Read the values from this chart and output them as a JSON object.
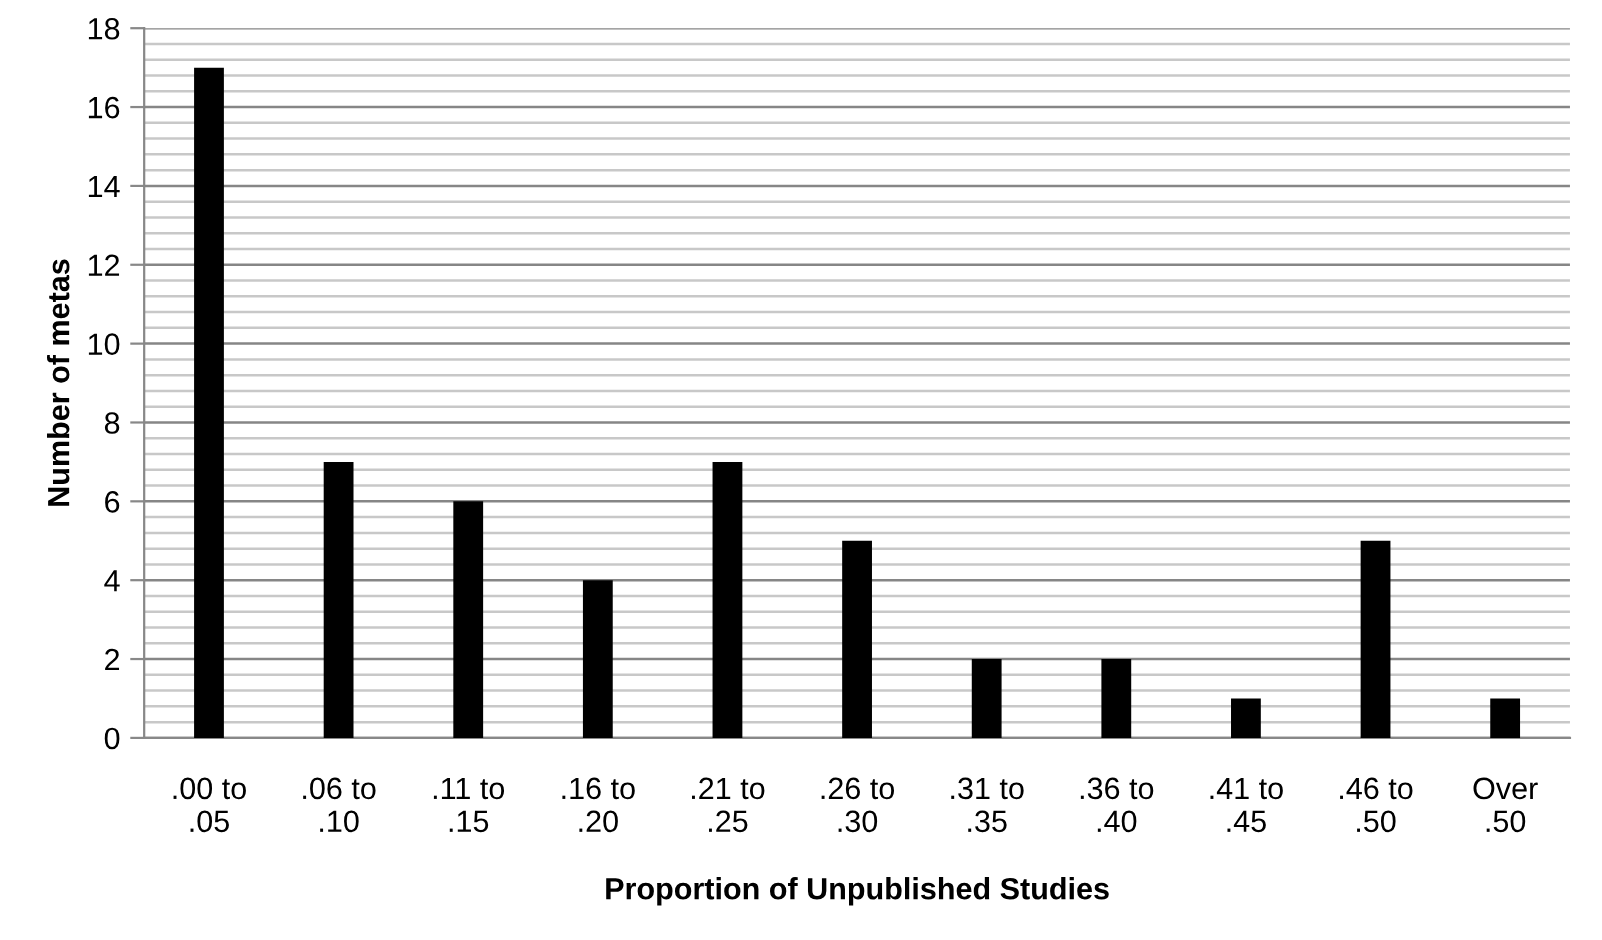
{
  "chart_data": {
    "type": "bar",
    "xlabel": "Proportion of Unpublished Studies",
    "ylabel": "Number of metas",
    "categories": [
      ".00 to\n.05",
      ".06 to\n.10",
      ".11 to\n.15",
      ".16 to\n.20",
      ".21 to\n.25",
      ".26 to\n.30",
      ".31 to\n.35",
      ".36 to\n.40",
      ".41 to\n.45",
      ".46 to\n.50",
      "Over\n.50"
    ],
    "values": [
      17,
      7,
      6,
      4,
      7,
      5,
      2,
      2,
      1,
      5,
      1
    ],
    "color": "#000000",
    "ylim": [
      0,
      18
    ],
    "yticks": [
      0,
      {
        "value": 0.4,
        "label": null
      },
      {
        "value": 0.8,
        "label": null
      },
      {
        "value": 1.2,
        "label": null
      },
      {
        "value": 1.6,
        "label": null
      },
      2,
      {
        "value": 2.4,
        "label": null
      },
      {
        "value": 2.8,
        "label": null
      },
      {
        "value": 3.2,
        "label": null
      },
      {
        "value": 3.6,
        "label": null
      },
      4,
      {
        "value": 4.4,
        "label": null
      },
      {
        "value": 4.8,
        "label": null
      },
      {
        "value": 5.2,
        "label": null
      },
      {
        "value": 5.6,
        "label": null
      },
      6,
      {
        "value": 6.4,
        "label": null
      },
      {
        "value": 6.8,
        "label": null
      },
      {
        "value": 7.2,
        "label": null
      },
      {
        "value": 7.6,
        "label": null
      },
      8,
      {
        "value": 8.4,
        "label": null
      },
      {
        "value": 8.8,
        "label": null
      },
      {
        "value": 9.2,
        "label": null
      },
      {
        "value": 9.6,
        "label": null
      },
      10,
      {
        "value": 10.4,
        "label": null
      },
      {
        "value": 10.8,
        "label": null
      },
      {
        "value": 11.2,
        "label": null
      },
      {
        "value": 11.6,
        "label": null
      },
      12,
      {
        "value": 12.4,
        "label": null
      },
      {
        "value": 12.8,
        "label": null
      },
      {
        "value": 13.2,
        "label": null
      },
      {
        "value": 13.6,
        "label": null
      },
      14,
      {
        "value": 14.4,
        "label": null
      },
      {
        "value": 14.8,
        "label": null
      },
      {
        "value": 15.2,
        "label": null
      },
      {
        "value": 15.6,
        "label": null
      },
      16,
      {
        "value": 16.4,
        "label": null
      },
      {
        "value": 16.8,
        "label": null
      },
      {
        "value": 17.2,
        "label": null
      },
      {
        "value": 17.6,
        "label": null
      },
      18
    ],
    "grid": "y"
  }
}
